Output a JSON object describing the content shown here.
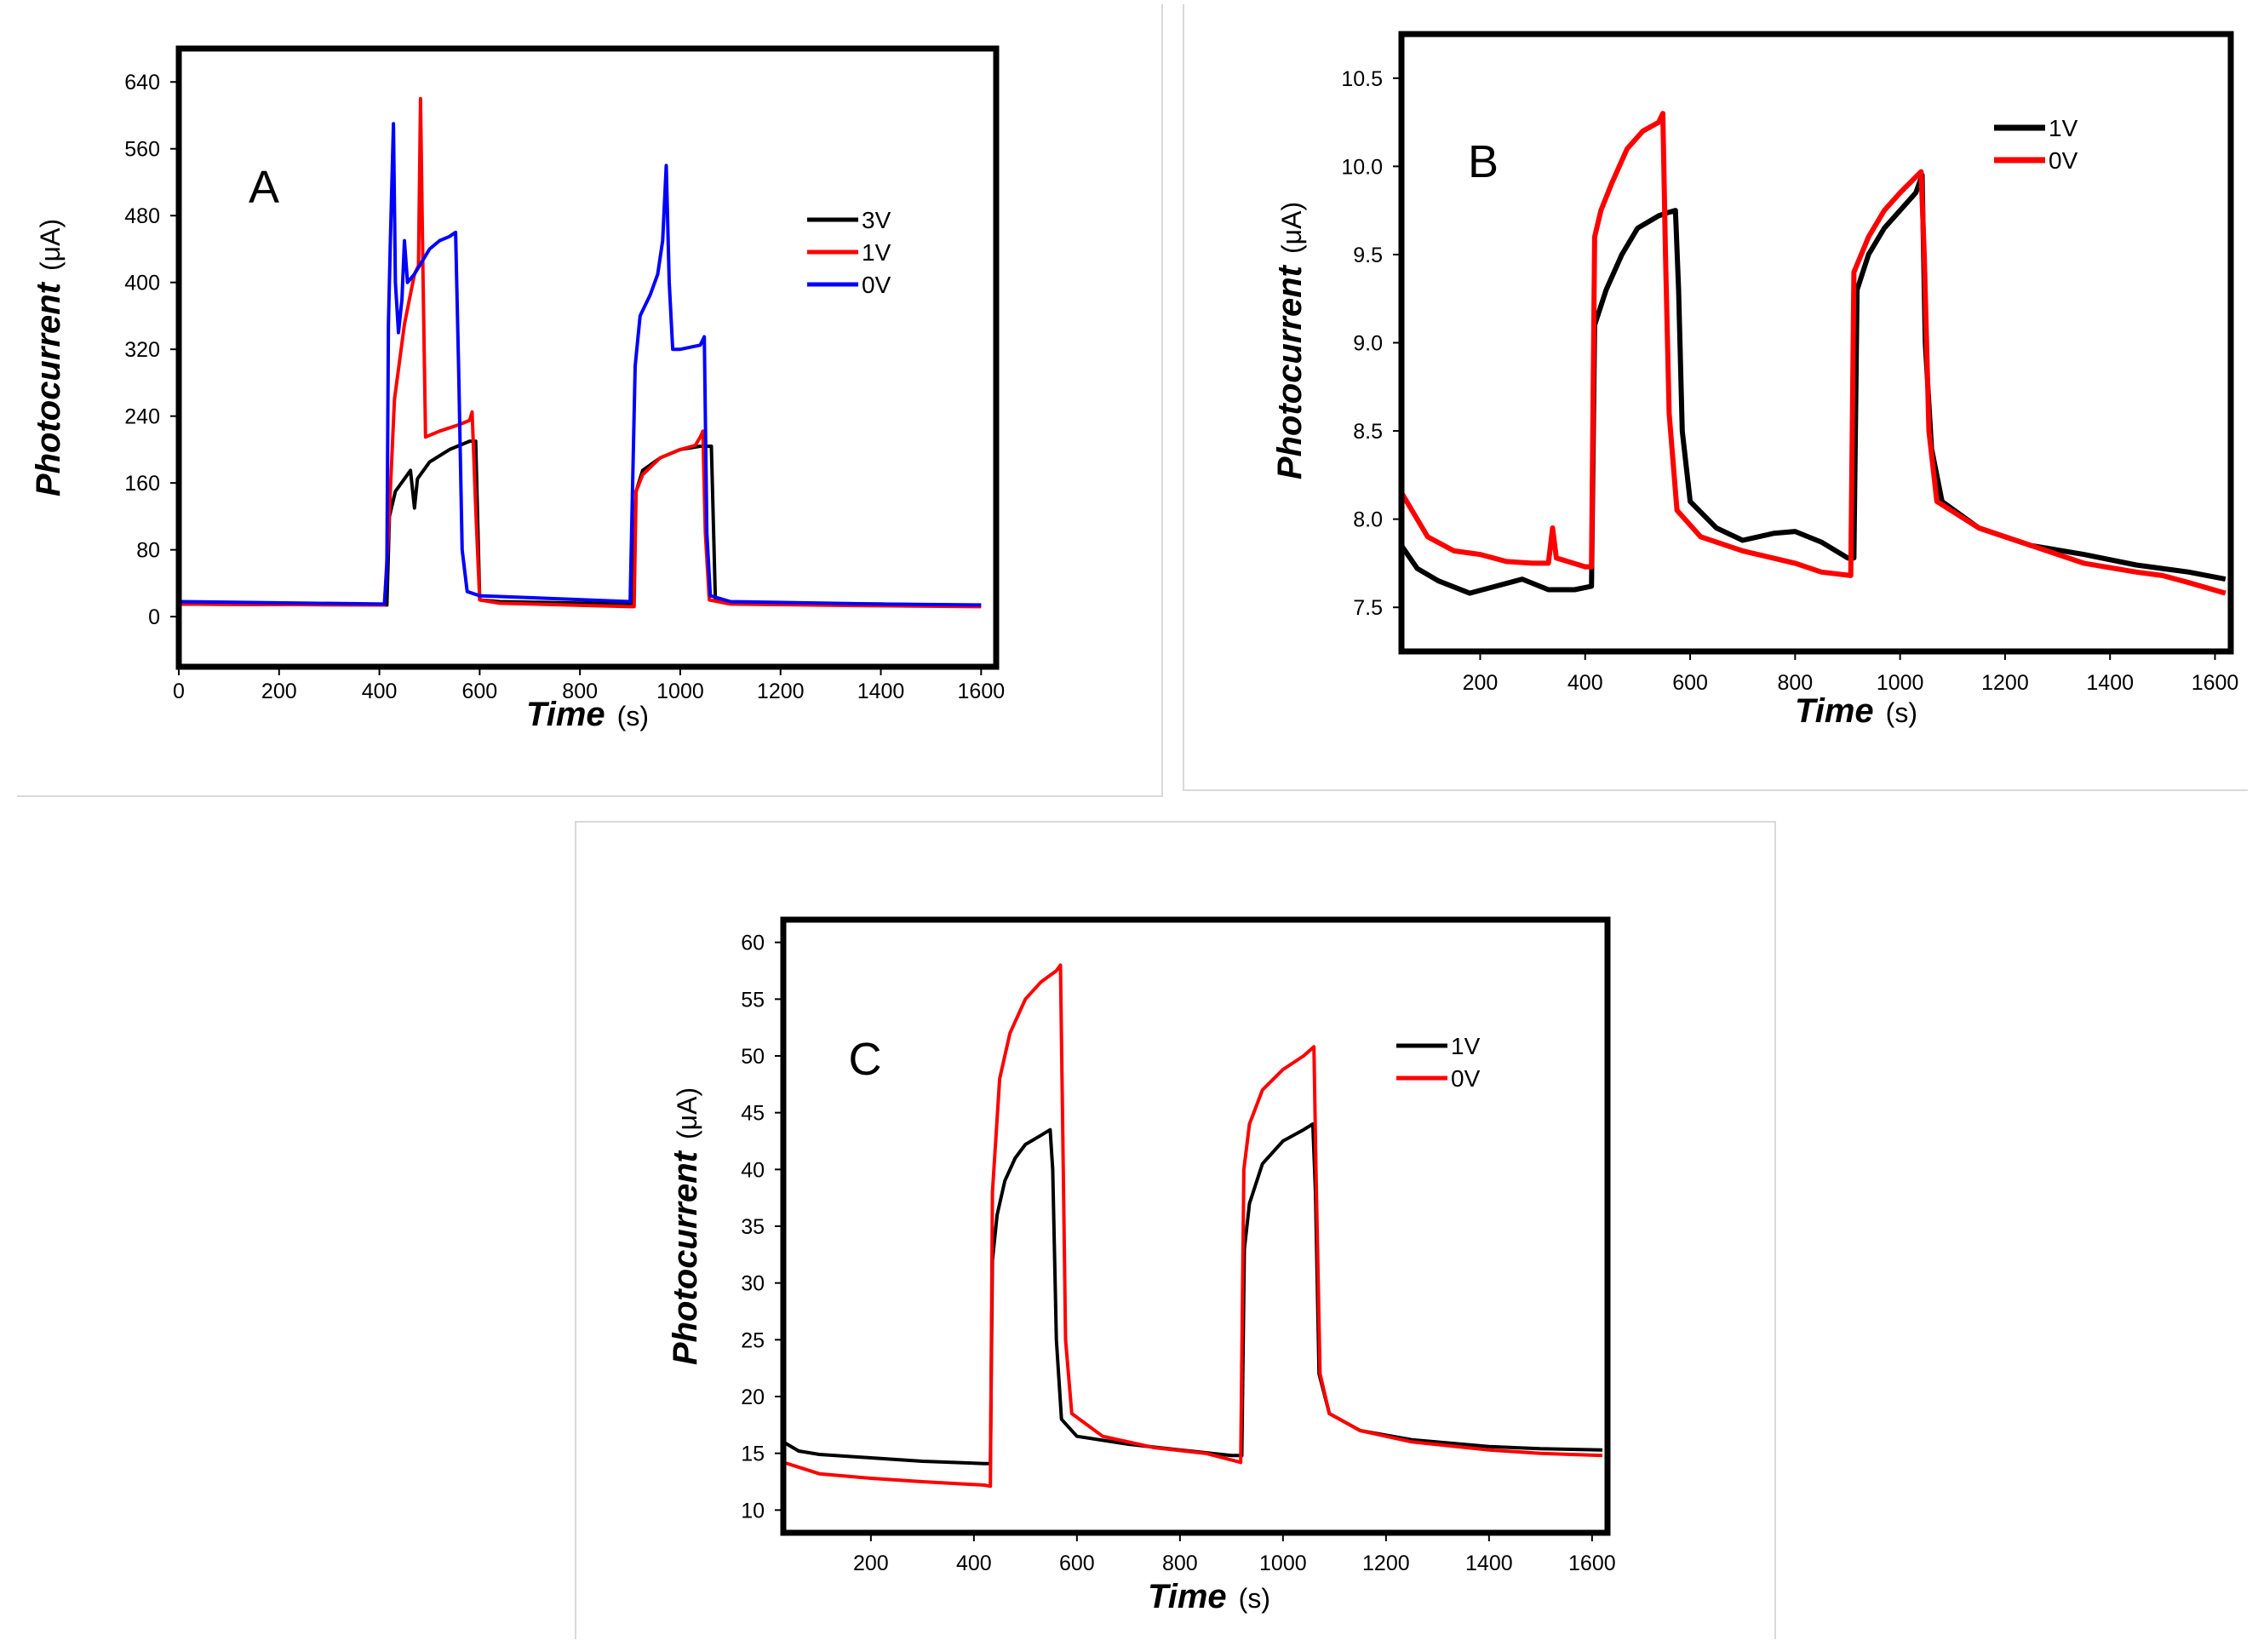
{
  "chart_data": [
    {
      "panel_label": "A",
      "type": "line",
      "xlabel": "Time",
      "xunit": "(s)",
      "ylabel": "Photocurrent",
      "yunit": "(μA)",
      "xlim": [
        0,
        1630
      ],
      "ylim": [
        -60,
        680
      ],
      "xticks": [
        0,
        200,
        400,
        600,
        800,
        1000,
        1200,
        1400,
        1600
      ],
      "yticks": [
        0,
        80,
        160,
        240,
        320,
        400,
        480,
        560,
        640
      ],
      "legend": [
        "3V",
        "1V",
        "0V"
      ],
      "series": [
        {
          "name": "3V",
          "color": "#000000",
          "points": [
            [
              0,
              15
            ],
            [
              415,
              14
            ],
            [
              420,
              120
            ],
            [
              432,
              150
            ],
            [
              450,
              165
            ],
            [
              462,
              175
            ],
            [
              470,
              130
            ],
            [
              476,
              165
            ],
            [
              500,
              185
            ],
            [
              540,
              200
            ],
            [
              580,
              210
            ],
            [
              592,
              210
            ],
            [
              600,
              20
            ],
            [
              640,
              18
            ],
            [
              900,
              15
            ],
            [
              905,
              15
            ],
            [
              912,
              150
            ],
            [
              925,
              175
            ],
            [
              960,
              190
            ],
            [
              1000,
              200
            ],
            [
              1040,
              204
            ],
            [
              1055,
              204
            ],
            [
              1062,
              204
            ],
            [
              1070,
              20
            ],
            [
              1100,
              17
            ],
            [
              1400,
              15
            ],
            [
              1600,
              13
            ]
          ]
        },
        {
          "name": "1V",
          "color": "#ff0000",
          "points": [
            [
              0,
              15
            ],
            [
              410,
              14
            ],
            [
              418,
              100
            ],
            [
              430,
              260
            ],
            [
              450,
              350
            ],
            [
              470,
              410
            ],
            [
              478,
              420
            ],
            [
              482,
              620
            ],
            [
              487,
              410
            ],
            [
              492,
              215
            ],
            [
              520,
              222
            ],
            [
              560,
              230
            ],
            [
              580,
              235
            ],
            [
              585,
              245
            ],
            [
              592,
              130
            ],
            [
              600,
              20
            ],
            [
              640,
              16
            ],
            [
              900,
              12
            ],
            [
              908,
              12
            ],
            [
              912,
              150
            ],
            [
              925,
              170
            ],
            [
              960,
              190
            ],
            [
              1000,
              200
            ],
            [
              1030,
              205
            ],
            [
              1040,
              215
            ],
            [
              1045,
              222
            ],
            [
              1050,
              100
            ],
            [
              1058,
              20
            ],
            [
              1100,
              15
            ],
            [
              1400,
              13
            ],
            [
              1600,
              12
            ]
          ]
        },
        {
          "name": "0V",
          "color": "#0000ff",
          "points": [
            [
              0,
              18
            ],
            [
              410,
              15
            ],
            [
              415,
              60
            ],
            [
              418,
              350
            ],
            [
              422,
              450
            ],
            [
              428,
              590
            ],
            [
              432,
              400
            ],
            [
              438,
              340
            ],
            [
              445,
              380
            ],
            [
              450,
              450
            ],
            [
              456,
              400
            ],
            [
              470,
              410
            ],
            [
              500,
              440
            ],
            [
              520,
              450
            ],
            [
              540,
              455
            ],
            [
              552,
              460
            ],
            [
              558,
              300
            ],
            [
              565,
              80
            ],
            [
              575,
              30
            ],
            [
              600,
              25
            ],
            [
              900,
              18
            ],
            [
              903,
              100
            ],
            [
              910,
              300
            ],
            [
              920,
              360
            ],
            [
              940,
              385
            ],
            [
              955,
              410
            ],
            [
              965,
              450
            ],
            [
              972,
              540
            ],
            [
              978,
              400
            ],
            [
              985,
              320
            ],
            [
              1000,
              320
            ],
            [
              1040,
              325
            ],
            [
              1048,
              335
            ],
            [
              1053,
              100
            ],
            [
              1060,
              25
            ],
            [
              1100,
              18
            ],
            [
              1400,
              15
            ],
            [
              1600,
              14
            ]
          ]
        }
      ]
    },
    {
      "panel_label": "B",
      "type": "line",
      "xlabel": "Time",
      "xunit": "(s)",
      "ylabel": "Photocurrent",
      "yunit": "(μA)",
      "xlim": [
        50,
        1630
      ],
      "ylim": [
        7.25,
        10.75
      ],
      "xticks": [
        200,
        400,
        600,
        800,
        1000,
        1200,
        1400,
        1600
      ],
      "yticks": [
        7.5,
        8.0,
        8.5,
        9.0,
        9.5,
        10.0,
        10.5
      ],
      "legend": [
        "1V",
        "0V"
      ],
      "series": [
        {
          "name": "1V",
          "color": "#000000",
          "points": [
            [
              50,
              7.85
            ],
            [
              80,
              7.72
            ],
            [
              120,
              7.65
            ],
            [
              180,
              7.58
            ],
            [
              230,
              7.62
            ],
            [
              280,
              7.66
            ],
            [
              330,
              7.6
            ],
            [
              380,
              7.6
            ],
            [
              412,
              7.62
            ],
            [
              418,
              9.1
            ],
            [
              440,
              9.3
            ],
            [
              470,
              9.5
            ],
            [
              500,
              9.65
            ],
            [
              540,
              9.72
            ],
            [
              560,
              9.74
            ],
            [
              572,
              9.75
            ],
            [
              578,
              9.3
            ],
            [
              585,
              8.5
            ],
            [
              600,
              8.1
            ],
            [
              650,
              7.95
            ],
            [
              700,
              7.88
            ],
            [
              760,
              7.92
            ],
            [
              800,
              7.93
            ],
            [
              850,
              7.87
            ],
            [
              900,
              7.78
            ],
            [
              912,
              7.78
            ],
            [
              918,
              9.3
            ],
            [
              940,
              9.5
            ],
            [
              970,
              9.65
            ],
            [
              1000,
              9.75
            ],
            [
              1030,
              9.85
            ],
            [
              1042,
              9.95
            ],
            [
              1048,
              9.0
            ],
            [
              1060,
              8.4
            ],
            [
              1080,
              8.1
            ],
            [
              1150,
              7.95
            ],
            [
              1250,
              7.85
            ],
            [
              1350,
              7.8
            ],
            [
              1450,
              7.74
            ],
            [
              1550,
              7.7
            ],
            [
              1620,
              7.66
            ]
          ]
        },
        {
          "name": "0V",
          "color": "#ff0000",
          "points": [
            [
              50,
              8.15
            ],
            [
              100,
              7.9
            ],
            [
              150,
              7.82
            ],
            [
              200,
              7.8
            ],
            [
              250,
              7.76
            ],
            [
              300,
              7.75
            ],
            [
              330,
              7.75
            ],
            [
              338,
              7.95
            ],
            [
              345,
              7.78
            ],
            [
              400,
              7.73
            ],
            [
              412,
              7.73
            ],
            [
              418,
              9.6
            ],
            [
              430,
              9.75
            ],
            [
              450,
              9.9
            ],
            [
              480,
              10.1
            ],
            [
              510,
              10.2
            ],
            [
              540,
              10.25
            ],
            [
              548,
              10.3
            ],
            [
              553,
              9.5
            ],
            [
              560,
              8.6
            ],
            [
              575,
              8.05
            ],
            [
              620,
              7.9
            ],
            [
              700,
              7.82
            ],
            [
              800,
              7.75
            ],
            [
              850,
              7.7
            ],
            [
              906,
              7.68
            ],
            [
              912,
              9.4
            ],
            [
              940,
              9.6
            ],
            [
              970,
              9.75
            ],
            [
              1000,
              9.85
            ],
            [
              1040,
              9.97
            ],
            [
              1046,
              9.5
            ],
            [
              1055,
              8.5
            ],
            [
              1070,
              8.1
            ],
            [
              1150,
              7.95
            ],
            [
              1250,
              7.85
            ],
            [
              1350,
              7.75
            ],
            [
              1450,
              7.7
            ],
            [
              1500,
              7.68
            ],
            [
              1550,
              7.64
            ],
            [
              1620,
              7.58
            ]
          ]
        }
      ]
    },
    {
      "panel_label": "C",
      "type": "line",
      "xlabel": "Time",
      "xunit": "(s)",
      "ylabel": "Photocurrent",
      "yunit": "(μA)",
      "xlim": [
        30,
        1630
      ],
      "ylim": [
        8,
        62
      ],
      "xticks": [
        200,
        400,
        600,
        800,
        1000,
        1200,
        1400,
        1600
      ],
      "yticks": [
        10,
        15,
        20,
        25,
        30,
        35,
        40,
        45,
        50,
        55,
        60
      ],
      "legend": [
        "1V",
        "0V"
      ],
      "series": [
        {
          "name": "1V",
          "color": "#000000",
          "points": [
            [
              30,
              16
            ],
            [
              60,
              15.2
            ],
            [
              100,
              14.9
            ],
            [
              200,
              14.6
            ],
            [
              300,
              14.3
            ],
            [
              420,
              14.1
            ],
            [
              432,
              14.1
            ],
            [
              436,
              32
            ],
            [
              445,
              36
            ],
            [
              460,
              39
            ],
            [
              480,
              41
            ],
            [
              500,
              42.2
            ],
            [
              530,
              43
            ],
            [
              548,
              43.5
            ],
            [
              553,
              40
            ],
            [
              560,
              25
            ],
            [
              570,
              18
            ],
            [
              600,
              16.5
            ],
            [
              700,
              15.8
            ],
            [
              800,
              15.3
            ],
            [
              900,
              14.8
            ],
            [
              920,
              14.8
            ],
            [
              925,
              33
            ],
            [
              935,
              37
            ],
            [
              960,
              40.5
            ],
            [
              1000,
              42.5
            ],
            [
              1040,
              43.5
            ],
            [
              1058,
              44
            ],
            [
              1063,
              38
            ],
            [
              1070,
              22
            ],
            [
              1090,
              18.5
            ],
            [
              1150,
              17
            ],
            [
              1250,
              16.2
            ],
            [
              1400,
              15.6
            ],
            [
              1500,
              15.4
            ],
            [
              1620,
              15.3
            ]
          ]
        },
        {
          "name": "0V",
          "color": "#ff0000",
          "points": [
            [
              30,
              14.2
            ],
            [
              100,
              13.2
            ],
            [
              200,
              12.8
            ],
            [
              300,
              12.5
            ],
            [
              420,
              12.2
            ],
            [
              432,
              12.1
            ],
            [
              436,
              38
            ],
            [
              450,
              48
            ],
            [
              470,
              52
            ],
            [
              500,
              55
            ],
            [
              530,
              56.5
            ],
            [
              560,
              57.5
            ],
            [
              568,
              58
            ],
            [
              572,
              45
            ],
            [
              578,
              25
            ],
            [
              590,
              18.5
            ],
            [
              650,
              16.5
            ],
            [
              750,
              15.5
            ],
            [
              850,
              15
            ],
            [
              918,
              14.2
            ],
            [
              924,
              40
            ],
            [
              935,
              44
            ],
            [
              960,
              47
            ],
            [
              1000,
              48.8
            ],
            [
              1040,
              50
            ],
            [
              1060,
              50.8
            ],
            [
              1064,
              40
            ],
            [
              1072,
              22
            ],
            [
              1090,
              18.5
            ],
            [
              1150,
              17
            ],
            [
              1250,
              16
            ],
            [
              1400,
              15.3
            ],
            [
              1500,
              15
            ],
            [
              1620,
              14.8
            ]
          ]
        }
      ]
    }
  ]
}
